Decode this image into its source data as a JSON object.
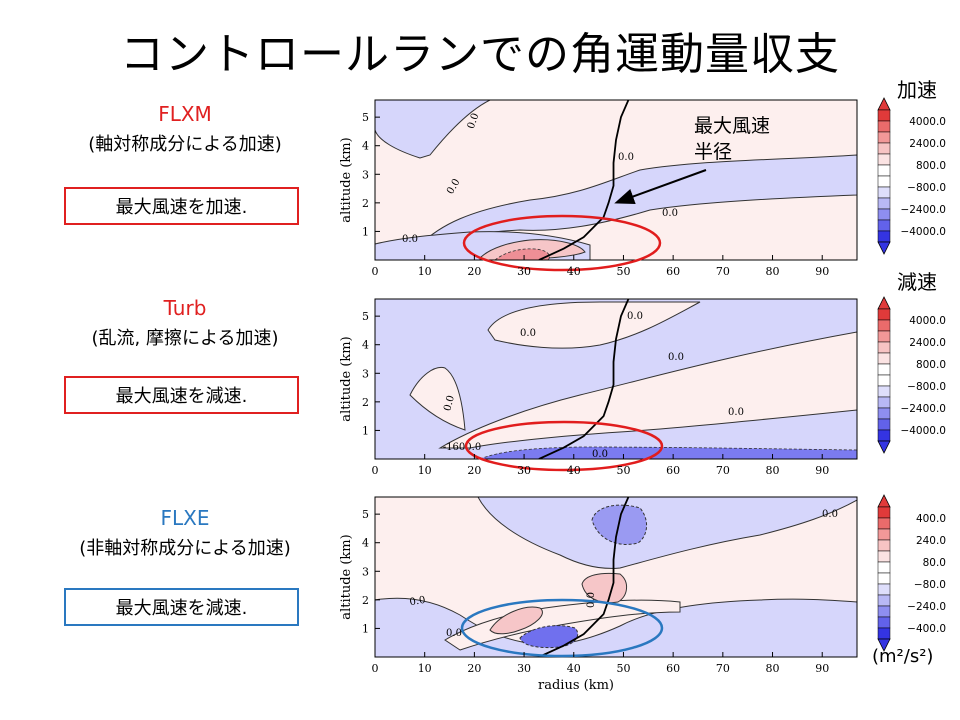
{
  "page": {
    "title": "コントロールランでの角運動量収支"
  },
  "labels": {
    "accel": "加速",
    "decel": "減速",
    "units": "(m²/s²)"
  },
  "panels": [
    {
      "term": "FLXM",
      "term_color": "#e02020",
      "description": "(軸対称成分による加速)",
      "note": "最大風速を加速.",
      "note_border": "#e02020"
    },
    {
      "term": "Turb",
      "term_color": "#e02020",
      "description": "(乱流, 摩擦による加速)",
      "note": "最大風速を減速.",
      "note_border": "#e02020"
    },
    {
      "term": "FLXE",
      "term_color": "#2a78c0",
      "description": "(非軸対称成分による加速)",
      "note": "最大風速を減速.",
      "note_border": "#2a78c0"
    }
  ],
  "annotation": {
    "line1": "最大風速",
    "line2": "半径"
  },
  "chart_data": [
    {
      "type": "heatmap",
      "name": "FLXM",
      "xlabel": "",
      "ylabel": "altitude (km)",
      "xlim": [
        0,
        97
      ],
      "ylim": [
        0,
        5.6
      ],
      "x_ticks": [
        0,
        10,
        20,
        30,
        40,
        50,
        60,
        70,
        80,
        90
      ],
      "y_ticks": [
        1,
        2,
        3,
        4,
        5
      ],
      "colorbar": {
        "ticks": [
          "4000.0",
          "2400.0",
          "800.0",
          "−800.0",
          "−2400.0",
          "−4000.0"
        ]
      },
      "contour_labels": [
        "0.0",
        "0.0",
        "0.0",
        "0.0",
        "0.0"
      ],
      "rmw_line": {
        "x": [
          33,
          38,
          42,
          46,
          47,
          48,
          48,
          48.5,
          49.5,
          51
        ],
        "y": [
          0,
          0.4,
          0.8,
          1.5,
          2.0,
          2.6,
          3.4,
          4.2,
          5.0,
          5.6
        ]
      }
    },
    {
      "type": "heatmap",
      "name": "Turb",
      "xlabel": "",
      "ylabel": "altitude (km)",
      "xlim": [
        0,
        97
      ],
      "ylim": [
        0,
        5.6
      ],
      "x_ticks": [
        0,
        10,
        20,
        30,
        40,
        50,
        60,
        70,
        80,
        90
      ],
      "y_ticks": [
        1,
        2,
        3,
        4,
        5
      ],
      "colorbar": {
        "ticks": [
          "4000.0",
          "2400.0",
          "800.0",
          "−800.0",
          "−2400.0",
          "−4000.0"
        ]
      },
      "contour_labels": [
        "0.0",
        "0.0",
        "0.0",
        "0.0",
        "0.0",
        "-1600.0",
        "0.0"
      ],
      "rmw_line": {
        "x": [
          33,
          38,
          42,
          46,
          47,
          48,
          48,
          48.5,
          49.5,
          51
        ],
        "y": [
          0,
          0.4,
          0.8,
          1.5,
          2.0,
          2.6,
          3.4,
          4.2,
          5.0,
          5.6
        ]
      }
    },
    {
      "type": "heatmap",
      "name": "FLXE",
      "xlabel": "radius (km)",
      "ylabel": "altitude (km)",
      "xlim": [
        0,
        97
      ],
      "ylim": [
        0,
        5.6
      ],
      "x_ticks": [
        0,
        10,
        20,
        30,
        40,
        50,
        60,
        70,
        80,
        90
      ],
      "y_ticks": [
        1,
        2,
        3,
        4,
        5
      ],
      "colorbar": {
        "ticks": [
          "400.0",
          "240.0",
          "80.0",
          "−80.0",
          "−240.0",
          "−400.0"
        ]
      },
      "contour_labels": [
        "0.0",
        "0.0",
        "0.0",
        "0.0"
      ],
      "rmw_line": {
        "x": [
          33,
          38,
          42,
          46,
          47,
          48,
          48,
          48.5,
          49.5,
          51
        ],
        "y": [
          0,
          0.4,
          0.8,
          1.5,
          2.0,
          2.6,
          3.4,
          4.2,
          5.0,
          5.6
        ]
      }
    }
  ],
  "colors": {
    "neg_fill": "#d6d6fb",
    "pos_fill": "#fdefee",
    "pos_strong": "#f4b3b7",
    "neg_strong": "#8f8ff0",
    "highlight_red": "#e11d1d",
    "highlight_blue": "#2a78c0"
  }
}
